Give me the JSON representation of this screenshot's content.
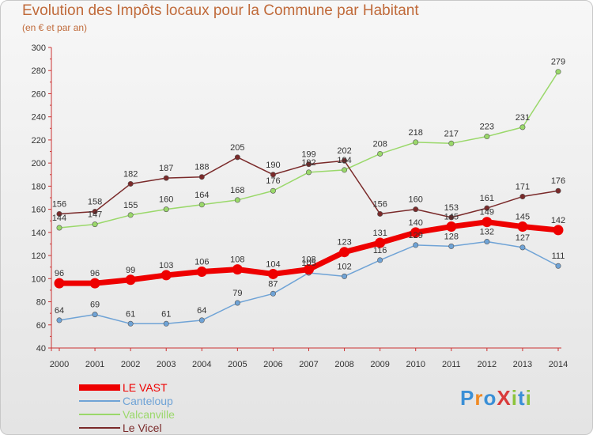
{
  "header": {
    "title": "Evolution des Impôts locaux pour la Commune par Habitant",
    "subtitle": "(en € et par an)"
  },
  "logo": {
    "text": "ProXiti",
    "colors": [
      "#3a8fd6",
      "#f08a24",
      "#3a8fd6",
      "#d93a3a",
      "#8cc43c",
      "#3a8fd6",
      "#8cc43c"
    ]
  },
  "chart_data": {
    "type": "line",
    "x": [
      "2000",
      "2001",
      "2002",
      "2003",
      "2004",
      "2005",
      "2006",
      "2007",
      "2008",
      "2009",
      "2010",
      "2011",
      "2012",
      "2013",
      "2014"
    ],
    "ylim": [
      40,
      300
    ],
    "yticks": [
      40,
      60,
      80,
      100,
      120,
      140,
      160,
      180,
      200,
      220,
      240,
      260,
      280,
      300
    ],
    "grid": false,
    "legend": "bottom-left",
    "series": [
      {
        "name": "LE VAST",
        "color": "#ee0000",
        "values": [
          96,
          96,
          99,
          103,
          106,
          108,
          104,
          108,
          123,
          131,
          140,
          145,
          149,
          145,
          142
        ],
        "labels": [
          "96",
          "96",
          "99",
          "103",
          "106",
          "108",
          "104",
          "108",
          "123",
          "131",
          "140",
          "145",
          "149",
          "145",
          "142"
        ]
      },
      {
        "name": "Canteloup",
        "color": "#6fa3d6",
        "values": [
          64,
          69,
          61,
          61,
          64,
          79,
          87,
          105,
          102,
          116,
          129,
          128,
          132,
          127,
          111
        ],
        "labels": [
          "64",
          "69",
          "61",
          "61",
          "64",
          "79",
          "87",
          "105",
          "102",
          "116",
          "129",
          "128",
          "132",
          "127",
          "111"
        ]
      },
      {
        "name": "Valcanville",
        "color": "#9ad86a",
        "values": [
          144,
          147,
          155,
          160,
          164,
          168,
          176,
          192,
          194,
          208,
          218,
          217,
          223,
          231,
          279
        ],
        "labels": [
          "144",
          "147",
          "155",
          "160",
          "164",
          "168",
          "176",
          "192",
          "194",
          "208",
          "218",
          "217",
          "223",
          "231",
          "279"
        ]
      },
      {
        "name": "Le Vicel",
        "color": "#7a2a2a",
        "values": [
          156,
          158,
          182,
          187,
          188,
          205,
          190,
          199,
          202,
          156,
          160,
          153,
          161,
          171,
          176
        ],
        "labels": [
          "156",
          "158",
          "182",
          "187",
          "188",
          "205",
          "190",
          "199",
          "202",
          "156",
          "160",
          "153",
          "161",
          "171",
          "176"
        ]
      }
    ]
  }
}
